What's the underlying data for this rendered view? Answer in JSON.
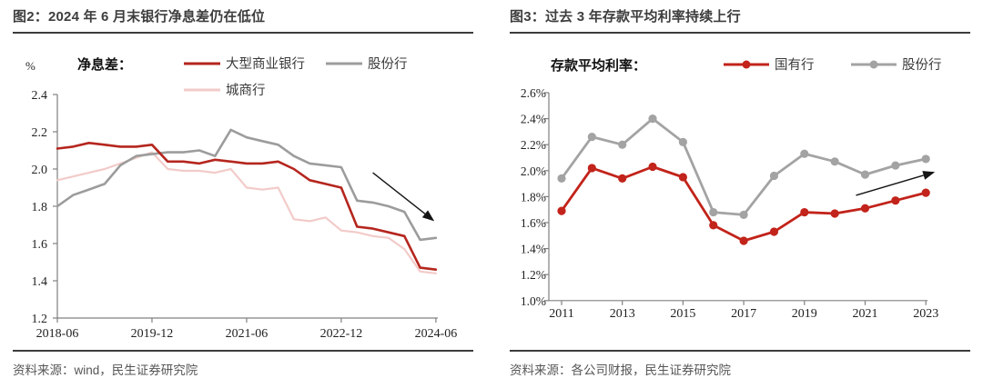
{
  "page": {
    "background": "#ffffff",
    "rule_color": "#3c3c3c",
    "axis_color": "#808080",
    "arrow_color": "#151515"
  },
  "chart_data": [
    {
      "type": "line",
      "figure_id": "图2",
      "title": "图2：2024 年 6 月末银行净息差仍在低位",
      "source": "资料来源：wind，民生证券研究院",
      "unit_label": "%",
      "legend_title": "净息差：",
      "legend_position": "top",
      "grid": false,
      "x": [
        "2018-06",
        "2018-09",
        "2018-12",
        "2019-03",
        "2019-06",
        "2019-09",
        "2019-12",
        "2020-03",
        "2020-06",
        "2020-09",
        "2020-12",
        "2021-03",
        "2021-06",
        "2021-09",
        "2021-12",
        "2022-03",
        "2022-06",
        "2022-09",
        "2022-12",
        "2023-03",
        "2023-06",
        "2023-09",
        "2023-12",
        "2024-03",
        "2024-06"
      ],
      "x_tick_labels": [
        "2018-06",
        "2019-12",
        "2021-06",
        "2022-12",
        "2024-06"
      ],
      "ylim": [
        1.2,
        2.4
      ],
      "y_tick_step": 0.2,
      "y_tick_labels": [
        "2.4",
        "2.2",
        "2.0",
        "1.8",
        "1.6",
        "1.4",
        "1.2"
      ],
      "y_tick_format": "plain",
      "series": [
        {
          "name": "大型商业银行",
          "color": "#b5261e",
          "marker": false,
          "line_width": 2.6,
          "values": [
            2.11,
            2.12,
            2.14,
            2.13,
            2.12,
            2.12,
            2.13,
            2.04,
            2.04,
            2.03,
            2.05,
            2.04,
            2.03,
            2.03,
            2.04,
            2.0,
            1.94,
            1.92,
            1.9,
            1.69,
            1.68,
            1.66,
            1.64,
            1.47,
            1.46
          ]
        },
        {
          "name": "股份行",
          "color": "#9c9c9c",
          "marker": false,
          "line_width": 2.6,
          "values": [
            1.8,
            1.86,
            1.89,
            1.92,
            2.02,
            2.07,
            2.08,
            2.09,
            2.09,
            2.1,
            2.07,
            2.21,
            2.17,
            2.15,
            2.13,
            2.07,
            2.03,
            2.02,
            2.01,
            1.83,
            1.82,
            1.8,
            1.77,
            1.62,
            1.63
          ]
        },
        {
          "name": "城商行",
          "color": "#f2cbc9",
          "marker": false,
          "line_width": 2.2,
          "values": [
            1.94,
            1.96,
            1.98,
            2.0,
            2.03,
            2.06,
            2.09,
            2.0,
            1.99,
            1.99,
            1.98,
            2.0,
            1.9,
            1.89,
            1.9,
            1.73,
            1.72,
            1.74,
            1.67,
            1.66,
            1.64,
            1.63,
            1.57,
            1.45,
            1.44
          ]
        }
      ],
      "annotation_arrow": {
        "from": [
          20.0,
          1.98
        ],
        "to": [
          23.9,
          1.72
        ],
        "direction": "down-right"
      }
    },
    {
      "type": "line",
      "figure_id": "图3",
      "title": "图3：过去 3 年存款平均利率持续上行",
      "source": "资料来源：各公司财报，民生证券研究院",
      "unit_label": "",
      "legend_title": "存款平均利率：",
      "legend_position": "top",
      "grid": false,
      "x": [
        "2011",
        "2012",
        "2013",
        "2014",
        "2015",
        "2016",
        "2017",
        "2018",
        "2019",
        "2020",
        "2021",
        "2022",
        "2023"
      ],
      "x_tick_labels": [
        "2011",
        "2013",
        "2015",
        "2017",
        "2019",
        "2021",
        "2023"
      ],
      "ylim": [
        1.0,
        2.6
      ],
      "y_tick_step": 0.2,
      "y_tick_labels": [
        "2.6%",
        "2.4%",
        "2.2%",
        "2.0%",
        "1.8%",
        "1.6%",
        "1.4%",
        "1.2%",
        "1.0%"
      ],
      "y_tick_format": "percent",
      "series": [
        {
          "name": "国有行",
          "color": "#c2231a",
          "marker": true,
          "line_width": 2.8,
          "values": [
            1.69,
            2.02,
            1.94,
            2.03,
            1.95,
            1.58,
            1.46,
            1.53,
            1.68,
            1.67,
            1.71,
            1.77,
            1.83
          ]
        },
        {
          "name": "股份行",
          "color": "#a3a3a3",
          "marker": true,
          "line_width": 2.8,
          "values": [
            1.94,
            2.26,
            2.2,
            2.4,
            2.22,
            1.68,
            1.66,
            1.96,
            2.13,
            2.07,
            1.97,
            2.04,
            2.09
          ]
        }
      ],
      "annotation_arrow": {
        "from": [
          9.7,
          1.81
        ],
        "to": [
          12.3,
          1.99
        ],
        "direction": "up-right"
      }
    }
  ]
}
